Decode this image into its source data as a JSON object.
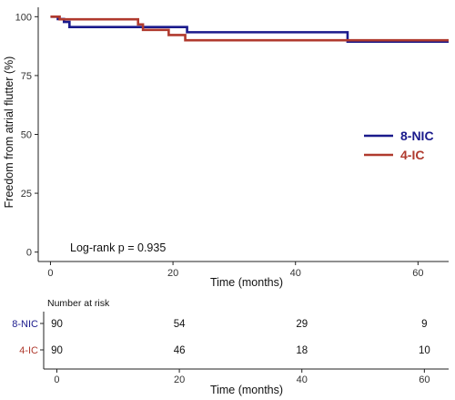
{
  "chart_data": {
    "type": "line",
    "subtype": "kaplan-meier step curve",
    "title": "",
    "xlabel": "Time (months)",
    "ylabel": "Freedom from atrial flutter (%)",
    "xlim": [
      -2,
      65
    ],
    "ylim": [
      -4,
      104
    ],
    "x_ticks": [
      0,
      20,
      40,
      60
    ],
    "y_ticks": [
      0,
      25,
      50,
      75,
      100
    ],
    "grid": false,
    "legend_position": "right",
    "annotation": "Log-rank p = 0.935",
    "series": [
      {
        "name": "8-NIC",
        "color": "#1a1a8c",
        "steps": [
          [
            0,
            100
          ],
          [
            1.2,
            99
          ],
          [
            2.2,
            97.8
          ],
          [
            3.1,
            95.6
          ],
          [
            22.3,
            93.4
          ],
          [
            48.5,
            89.4
          ],
          [
            65,
            89.4
          ]
        ]
      },
      {
        "name": "4-IC",
        "color": "#b03a2e",
        "steps": [
          [
            0,
            100
          ],
          [
            1.5,
            98.9
          ],
          [
            14.3,
            96.7
          ],
          [
            15.1,
            94.4
          ],
          [
            19.3,
            92.2
          ],
          [
            22.0,
            90.0
          ],
          [
            65,
            90.0
          ]
        ]
      }
    ],
    "risk_table": {
      "heading": "Number at risk",
      "xlabel": "Time (months)",
      "x_ticks": [
        0,
        20,
        40,
        60
      ],
      "groups": [
        {
          "name": "8-NIC",
          "color": "#1a1a8c",
          "values": [
            90,
            54,
            29,
            9
          ]
        },
        {
          "name": "4-IC",
          "color": "#b03a2e",
          "values": [
            90,
            46,
            18,
            10
          ]
        }
      ]
    }
  }
}
